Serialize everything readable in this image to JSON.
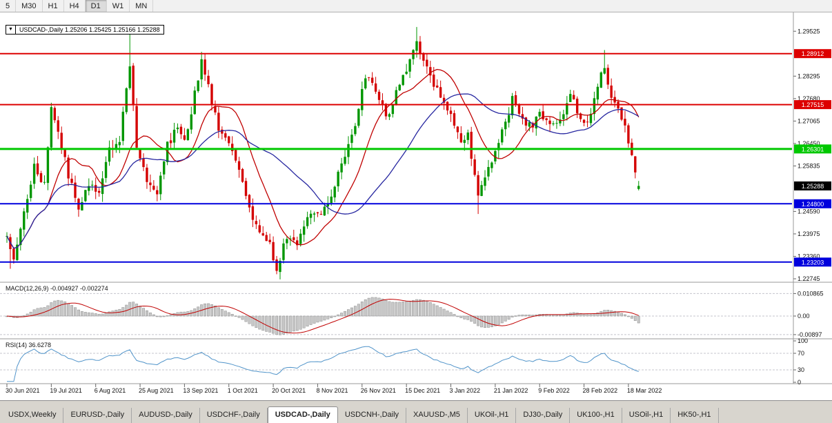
{
  "colors": {
    "background": "#ffffff",
    "candle_up": "#009600",
    "candle_down": "#d40000",
    "ma_fast": "#c00000",
    "ma_slow": "#2626a0",
    "macd_hist_fill": "#c8c8c8",
    "macd_hist_stroke": "#8c8c8c",
    "macd_signal": "#c00000",
    "rsi_line": "#4f93c9",
    "axis_text": "#111111",
    "grid_dash": "#c4c4cc",
    "pane_border": "#9a9a9a",
    "level_red": "#dd0000",
    "level_green": "#00c800",
    "level_blue": "#0000dd",
    "current_price_badge": "#000000"
  },
  "toolbar": {
    "timeframes": [
      {
        "label": "5",
        "active": false
      },
      {
        "label": "M30",
        "active": false
      },
      {
        "label": "H1",
        "active": false
      },
      {
        "label": "H4",
        "active": false
      },
      {
        "label": "D1",
        "active": true
      },
      {
        "label": "W1",
        "active": false
      },
      {
        "label": "MN",
        "active": false
      }
    ]
  },
  "legend": {
    "expander": "▼",
    "text": "USDCAD-,Daily 1.25206 1.25425 1.25166 1.25288"
  },
  "tabs": {
    "items": [
      {
        "label": "USDX,Weekly",
        "active": false
      },
      {
        "label": "EURUSD-,Daily",
        "active": false
      },
      {
        "label": "AUDUSD-,Daily",
        "active": false
      },
      {
        "label": "USDCHF-,Daily",
        "active": false
      },
      {
        "label": "USDCAD-,Daily",
        "active": true
      },
      {
        "label": "USDCNH-,Daily",
        "active": false
      },
      {
        "label": "XAUUSD-,M5",
        "active": false
      },
      {
        "label": "UKOil-,H1",
        "active": false
      },
      {
        "label": "DJ30-,Daily",
        "active": false
      },
      {
        "label": "UK100-,H1",
        "active": false
      },
      {
        "label": "USOil-,H1",
        "active": false
      },
      {
        "label": "HK50-,H1",
        "active": false
      }
    ]
  },
  "chart_data": {
    "type": "candlestick",
    "symbol": "USDCAD-",
    "timeframe": "Daily",
    "ohlc_display": {
      "open": "1.25206",
      "high": "1.25425",
      "low": "1.25166",
      "close": "1.25288"
    },
    "bars": 186,
    "last_bar": {
      "o": 1.25206,
      "h": 1.25425,
      "l": 1.25166,
      "c": 1.25288
    },
    "price_path": [
      [
        0,
        1.239
      ],
      [
        2,
        1.2325
      ],
      [
        5,
        1.245
      ],
      [
        8,
        1.2585
      ],
      [
        11,
        1.253
      ],
      [
        13,
        1.275
      ],
      [
        15,
        1.2675
      ],
      [
        18,
        1.256
      ],
      [
        21,
        1.2475
      ],
      [
        24,
        1.253
      ],
      [
        27,
        1.2505
      ],
      [
        30,
        1.2625
      ],
      [
        33,
        1.265
      ],
      [
        35,
        1.28
      ],
      [
        36,
        1.286
      ],
      [
        38,
        1.264
      ],
      [
        41,
        1.2545
      ],
      [
        44,
        1.25
      ],
      [
        47,
        1.264
      ],
      [
        50,
        1.269
      ],
      [
        52,
        1.2645
      ],
      [
        55,
        1.278
      ],
      [
        57,
        1.287
      ],
      [
        59,
        1.28
      ],
      [
        62,
        1.268
      ],
      [
        65,
        1.264
      ],
      [
        68,
        1.2575
      ],
      [
        71,
        1.247
      ],
      [
        74,
        1.2395
      ],
      [
        77,
        1.2365
      ],
      [
        79,
        1.2305
      ],
      [
        82,
        1.239
      ],
      [
        85,
        1.2375
      ],
      [
        88,
        1.245
      ],
      [
        91,
        1.2445
      ],
      [
        94,
        1.2485
      ],
      [
        97,
        1.256
      ],
      [
        100,
        1.264
      ],
      [
        103,
        1.2735
      ],
      [
        104,
        1.279
      ],
      [
        106,
        1.2835
      ],
      [
        109,
        1.276
      ],
      [
        112,
        1.2715
      ],
      [
        114,
        1.279
      ],
      [
        117,
        1.285
      ],
      [
        120,
        1.293
      ],
      [
        122,
        1.2865
      ],
      [
        125,
        1.281
      ],
      [
        128,
        1.2765
      ],
      [
        130,
        1.272
      ],
      [
        133,
        1.2645
      ],
      [
        135,
        1.2665
      ],
      [
        138,
        1.25
      ],
      [
        140,
        1.2555
      ],
      [
        143,
        1.262
      ],
      [
        146,
        1.27
      ],
      [
        148,
        1.2765
      ],
      [
        151,
        1.271
      ],
      [
        154,
        1.2685
      ],
      [
        156,
        1.2735
      ],
      [
        159,
        1.269
      ],
      [
        162,
        1.2715
      ],
      [
        165,
        1.2775
      ],
      [
        168,
        1.2715
      ],
      [
        170,
        1.27
      ],
      [
        172,
        1.2765
      ],
      [
        174,
        1.284
      ],
      [
        175,
        1.286
      ],
      [
        177,
        1.276
      ],
      [
        179,
        1.2735
      ],
      [
        181,
        1.2695
      ],
      [
        182,
        1.2645
      ],
      [
        183,
        1.2605
      ],
      [
        184,
        1.2565
      ],
      [
        185,
        1.2529
      ]
    ],
    "spikes": [
      {
        "i": 1,
        "l": 1.2302
      },
      {
        "i": 36,
        "h": 1.2949
      },
      {
        "i": 57,
        "h": 1.2896
      },
      {
        "i": 79,
        "l": 1.2287
      },
      {
        "i": 120,
        "h": 1.2964
      },
      {
        "i": 138,
        "l": 1.2452
      },
      {
        "i": 175,
        "h": 1.2901
      }
    ],
    "levels": [
      {
        "value": 1.28912,
        "label": "1.28912",
        "color": "#dd0000",
        "width": 2
      },
      {
        "value": 1.27515,
        "label": "1.27515",
        "color": "#dd0000",
        "width": 2
      },
      {
        "value": 1.26301,
        "label": "1.26301",
        "color": "#00c800",
        "width": 3
      },
      {
        "value": 1.248,
        "label": "1.24800",
        "color": "#0000dd",
        "width": 2
      },
      {
        "value": 1.23203,
        "label": "1.23203",
        "color": "#0000dd",
        "width": 2
      }
    ],
    "current_price": {
      "value": 1.25288,
      "label": "1.25288"
    },
    "y_axis": {
      "min": 1.2267,
      "max": 1.3004,
      "ticks": [
        {
          "value": 1.29525,
          "label": "1.29525"
        },
        {
          "value": 1.28295,
          "label": "1.28295"
        },
        {
          "value": 1.2768,
          "label": "1.27680"
        },
        {
          "value": 1.27065,
          "label": "1.27065"
        },
        {
          "value": 1.2645,
          "label": "1.26450"
        },
        {
          "value": 1.25835,
          "label": "1.25835"
        },
        {
          "value": 1.2459,
          "label": "1.24590"
        },
        {
          "value": 1.23975,
          "label": "1.23975"
        },
        {
          "value": 1.2336,
          "label": "1.23360"
        },
        {
          "value": 1.22745,
          "label": "1.22745"
        }
      ]
    },
    "x_labels": [
      {
        "i": 0,
        "label": "30 Jun 2021"
      },
      {
        "i": 13,
        "label": "19 Jul 2021"
      },
      {
        "i": 26,
        "label": "6 Aug 2021"
      },
      {
        "i": 39,
        "label": "25 Aug 2021"
      },
      {
        "i": 52,
        "label": "13 Sep 2021"
      },
      {
        "i": 65,
        "label": "1 Oct 2021"
      },
      {
        "i": 78,
        "label": "20 Oct 2021"
      },
      {
        "i": 91,
        "label": "8 Nov 2021"
      },
      {
        "i": 104,
        "label": "26 Nov 2021"
      },
      {
        "i": 117,
        "label": "15 Dec 2021"
      },
      {
        "i": 130,
        "label": "3 Jan 2022"
      },
      {
        "i": 143,
        "label": "21 Jan 2022"
      },
      {
        "i": 156,
        "label": "9 Feb 2022"
      },
      {
        "i": 169,
        "label": "28 Feb 2022"
      },
      {
        "i": 182,
        "label": "18 Mar 2022"
      }
    ],
    "moving_averages": [
      {
        "period": 13,
        "color_key": "ma_fast"
      },
      {
        "period": 34,
        "color_key": "ma_slow"
      }
    ],
    "indicators": {
      "macd": {
        "label": "MACD(12,26,9) -0.004927 -0.002274",
        "params": [
          12,
          26,
          9
        ],
        "main_value": "-0.004927",
        "signal_value": "-0.002274",
        "axis": [
          {
            "value": 0.010865,
            "label": "0.010865"
          },
          {
            "value": 0,
            "label": "0.00"
          },
          {
            "value": -0.00897,
            "label": "-0.00897"
          }
        ]
      },
      "rsi": {
        "label": "RSI(14) 36.6278",
        "period": 14,
        "value": "36.6278",
        "axis": [
          {
            "value": 100,
            "label": "100"
          },
          {
            "value": 70,
            "label": "70"
          },
          {
            "value": 30,
            "label": "30"
          },
          {
            "value": 0,
            "label": "0"
          }
        ],
        "dashed_levels": [
          70,
          30
        ]
      }
    }
  }
}
